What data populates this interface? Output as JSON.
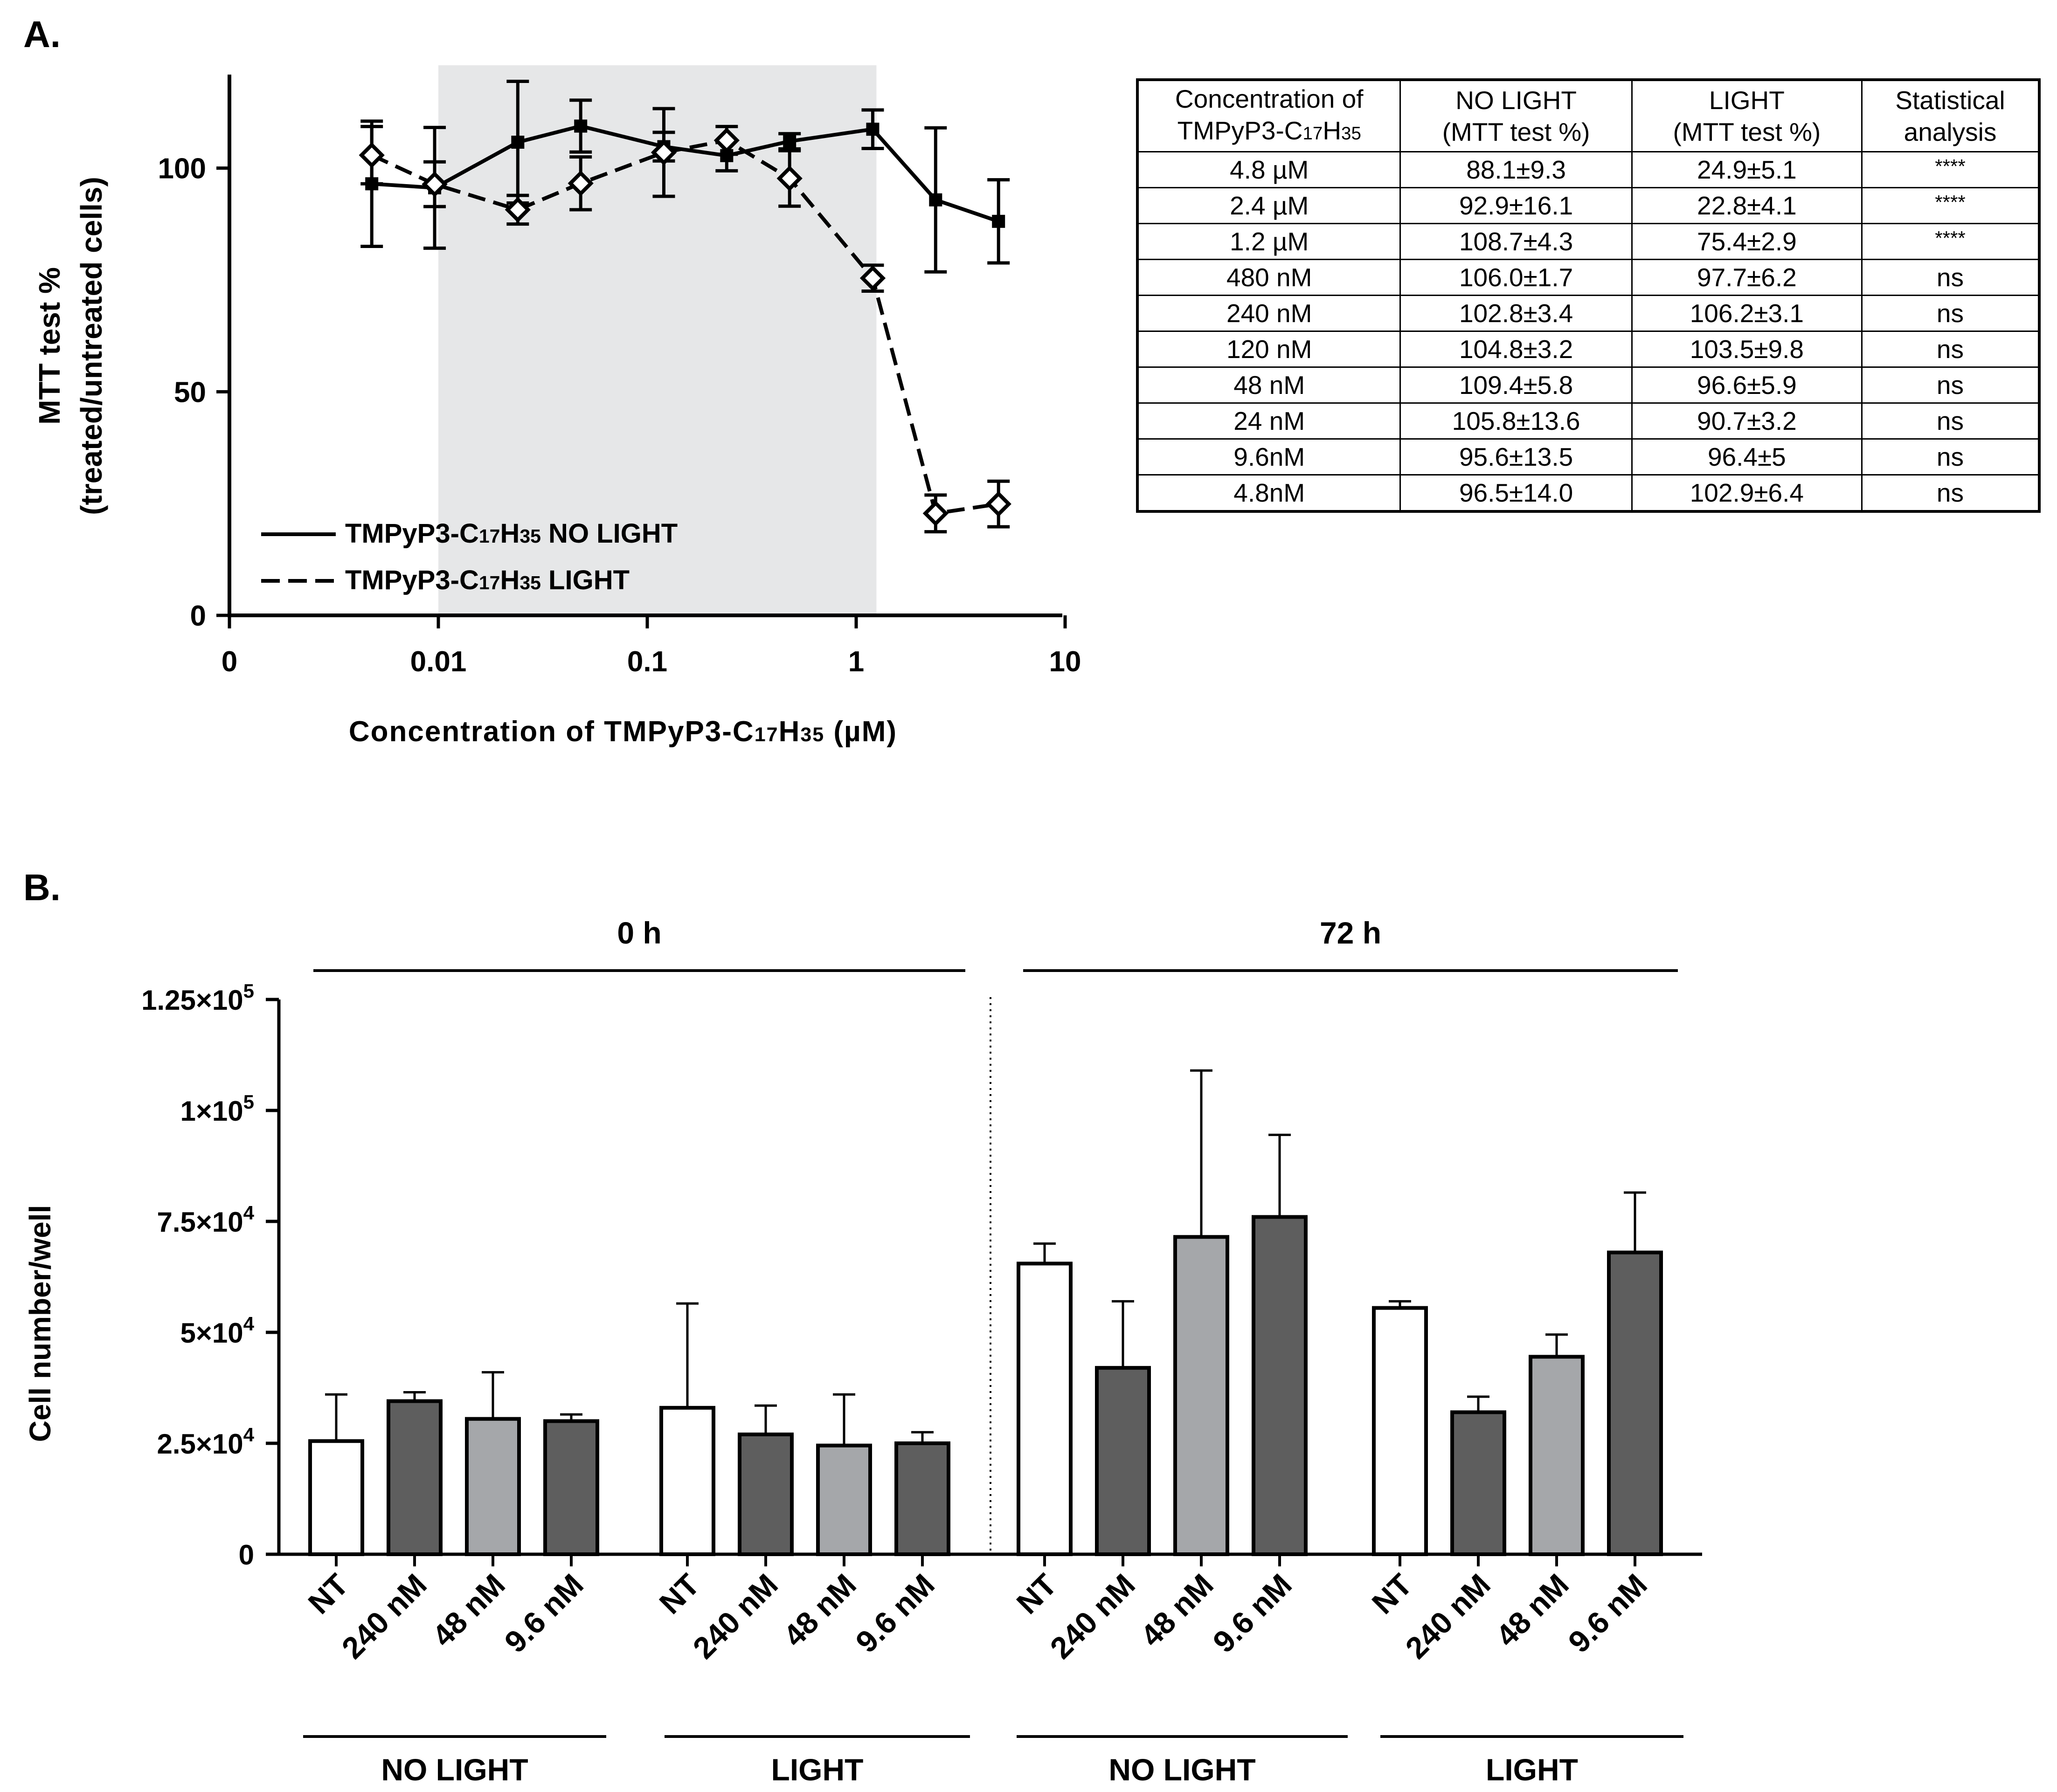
{
  "panel_a": {
    "label": "A.",
    "legend": {
      "no_light": "TMPyP3-C17H35 NO LIGHT",
      "light": "TMPyP3-C17H35 LIGHT"
    },
    "table": {
      "headers": [
        [
          "Concentration of",
          "TMPyP3-C17H35"
        ],
        [
          "NO LIGHT",
          "(MTT test %)"
        ],
        [
          "LIGHT",
          "(MTT test %)"
        ],
        [
          "Statistical",
          "analysis"
        ]
      ],
      "rows": [
        [
          "4.8 µM",
          "88.1±9.3",
          "24.9±5.1",
          "****"
        ],
        [
          "2.4 µM",
          "92.9±16.1",
          "22.8±4.1",
          "****"
        ],
        [
          "1.2 µM",
          "108.7±4.3",
          "75.4±2.9",
          "****"
        ],
        [
          "480 nM",
          "106.0±1.7",
          "97.7±6.2",
          "ns"
        ],
        [
          "240 nM",
          "102.8±3.4",
          "106.2±3.1",
          "ns"
        ],
        [
          "120 nM",
          "104.8±3.2",
          "103.5±9.8",
          "ns"
        ],
        [
          "48 nM",
          "109.4±5.8",
          "96.6±5.9",
          "ns"
        ],
        [
          "24 nM",
          "105.8±13.6",
          "90.7±3.2",
          "ns"
        ],
        [
          "9.6nM",
          "95.6±13.5",
          "96.4±5",
          "ns"
        ],
        [
          "4.8nM",
          "96.5±14.0",
          "102.9±6.4",
          "ns"
        ]
      ]
    }
  },
  "panel_b": {
    "label": "B.",
    "time_labels": [
      "0 h",
      "72 h"
    ],
    "group_labels": [
      "NO LIGHT",
      "LIGHT",
      "NO LIGHT",
      "LIGHT"
    ]
  },
  "colors": {
    "shade": "#e6e7e8",
    "bar_white": "#ffffff",
    "bar_dark": "#5e5e5e",
    "bar_light": "#a5a7aa",
    "ink": "#000000"
  },
  "chart_data": [
    {
      "type": "line",
      "title": "",
      "xlabel": "Concentration of TMPyP3-C17H35 (µM)",
      "ylabel": "MTT test % (treated/untreated cells)",
      "xscale": "log",
      "x_ticks": [
        "0",
        "0.01",
        "0.1",
        "1",
        "10"
      ],
      "y_ticks": [
        "0",
        "50",
        "100"
      ],
      "ylim": [
        0,
        123
      ],
      "shaded_region": [
        0.01,
        1.25
      ],
      "x": [
        0.0048,
        0.0096,
        0.024,
        0.048,
        0.12,
        0.24,
        0.48,
        1.2,
        2.4,
        4.8
      ],
      "series": [
        {
          "name": "TMPyP3-C17H35 NO LIGHT",
          "style": "solid",
          "marker": "square",
          "values": [
            96.5,
            95.6,
            105.8,
            109.4,
            104.8,
            102.8,
            106.0,
            108.7,
            92.9,
            88.1
          ],
          "errors": [
            14.0,
            13.5,
            13.6,
            5.8,
            3.2,
            3.4,
            1.7,
            4.3,
            16.1,
            9.3
          ]
        },
        {
          "name": "TMPyP3-C17H35 LIGHT",
          "style": "dashed",
          "marker": "diamond",
          "values": [
            102.9,
            96.4,
            90.7,
            96.6,
            103.5,
            106.2,
            97.7,
            75.4,
            22.8,
            24.9
          ],
          "errors": [
            6.4,
            5.0,
            3.2,
            5.9,
            9.8,
            3.1,
            6.2,
            2.9,
            4.1,
            5.1
          ]
        }
      ]
    },
    {
      "type": "bar",
      "title": "",
      "xlabel": "",
      "ylabel": "Cell number/well",
      "ylim": [
        0,
        125000
      ],
      "y_ticks": [
        {
          "value": 0,
          "mantissa": "0",
          "exp": ""
        },
        {
          "value": 25000,
          "mantissa": "2.5×10",
          "exp": "4"
        },
        {
          "value": 50000,
          "mantissa": "5×10",
          "exp": "4"
        },
        {
          "value": 75000,
          "mantissa": "7.5×10",
          "exp": "4"
        },
        {
          "value": 100000,
          "mantissa": "1×10",
          "exp": "5"
        },
        {
          "value": 125000,
          "mantissa": "1.25×10",
          "exp": "5"
        }
      ],
      "categories": [
        "NT",
        "240 nM",
        "48 nM",
        "9.6 nM",
        "NT",
        "240 nM",
        "48 nM",
        "9.6 nM",
        "NT",
        "240 nM",
        "48 nM",
        "9.6 nM",
        "NT",
        "240 nM",
        "48 nM",
        "9.6 nM"
      ],
      "fills": [
        "white",
        "dark",
        "light",
        "dark",
        "white",
        "dark",
        "light",
        "dark",
        "white",
        "dark",
        "light",
        "dark",
        "white",
        "dark",
        "light",
        "dark"
      ],
      "values": [
        25500,
        34500,
        30500,
        30000,
        33000,
        27000,
        24500,
        25000,
        65500,
        42000,
        71500,
        76000,
        55500,
        32000,
        44500,
        68000
      ],
      "errors": [
        10500,
        2000,
        10500,
        1500,
        23500,
        6500,
        11500,
        2500,
        4500,
        15000,
        37500,
        18500,
        1500,
        3500,
        5000,
        13500
      ],
      "groups": [
        "0 h NO LIGHT",
        "0 h LIGHT",
        "72 h NO LIGHT",
        "72 h LIGHT"
      ]
    }
  ]
}
